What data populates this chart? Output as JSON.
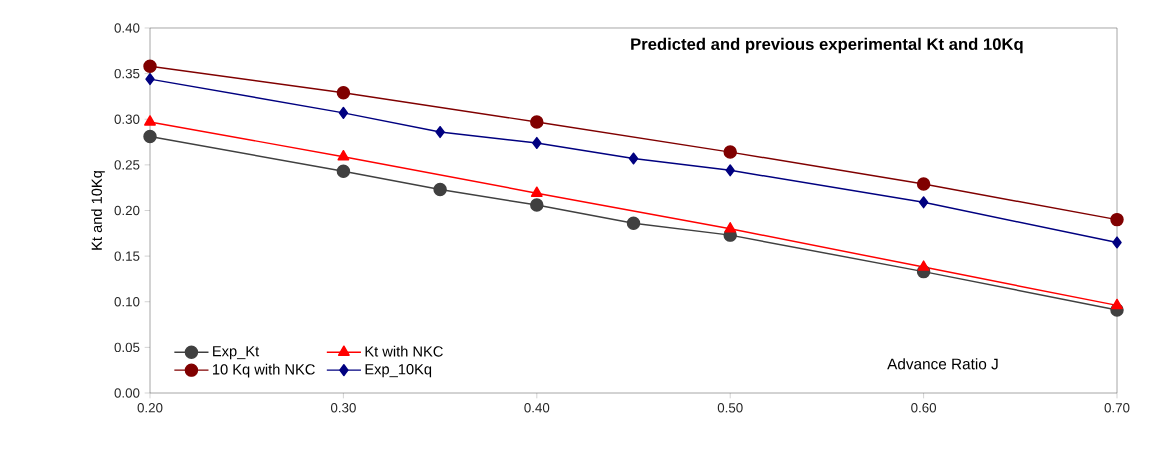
{
  "chart_data": {
    "type": "line",
    "title": "Predicted and previous experimental Kt and 10Kq",
    "xlabel": "Advance Ratio J",
    "ylabel": "Kt and 10Kq",
    "xlim": [
      0.2,
      0.7
    ],
    "ylim": [
      0,
      0.4
    ],
    "xticks": [
      {
        "value": 0.2,
        "label": "0.20"
      },
      {
        "value": 0.3,
        "label": "0.30"
      },
      {
        "value": 0.4,
        "label": "0.40"
      },
      {
        "value": 0.5,
        "label": "0.50"
      },
      {
        "value": 0.6,
        "label": "0.60"
      },
      {
        "value": 0.7,
        "label": "0.70"
      }
    ],
    "yticks": [
      {
        "value": 0,
        "label": "0.00"
      },
      {
        "value": 0.05,
        "label": "0.05"
      },
      {
        "value": 0.1,
        "label": "0.10"
      },
      {
        "value": 0.15,
        "label": "0.15"
      },
      {
        "value": 0.2,
        "label": "0.20"
      },
      {
        "value": 0.25,
        "label": "0.25"
      },
      {
        "value": 0.3,
        "label": "0.30"
      },
      {
        "value": 0.35,
        "label": "0.35"
      },
      {
        "value": 0.4,
        "label": "0.40"
      }
    ],
    "legend": "bottom left",
    "line_style": "solid",
    "series": [
      {
        "name": "Exp_Kt",
        "color": "#404040",
        "marker": "circle",
        "x": [
          0.2,
          0.3,
          0.35,
          0.4,
          0.45,
          0.5,
          0.6,
          0.7
        ],
        "values": [
          0.281,
          0.243,
          0.223,
          0.206,
          0.186,
          0.173,
          0.133,
          0.091
        ]
      },
      {
        "name": "Kt with NKC",
        "color": "#ff0000",
        "marker": "triangle",
        "x": [
          0.2,
          0.3,
          0.4,
          0.5,
          0.6,
          0.7
        ],
        "values": [
          0.297,
          0.259,
          0.219,
          0.18,
          0.138,
          0.096
        ]
      },
      {
        "name": "10 Kq with NKC",
        "color": "#800000",
        "marker": "circle",
        "x": [
          0.2,
          0.3,
          0.4,
          0.5,
          0.6,
          0.7
        ],
        "values": [
          0.358,
          0.329,
          0.297,
          0.264,
          0.229,
          0.19
        ]
      },
      {
        "name": "Exp_10Kq",
        "color": "#000080",
        "marker": "diamond",
        "x": [
          0.2,
          0.3,
          0.35,
          0.4,
          0.45,
          0.5,
          0.6,
          0.7
        ],
        "values": [
          0.344,
          0.307,
          0.286,
          0.274,
          0.257,
          0.244,
          0.209,
          0.165
        ]
      }
    ]
  }
}
